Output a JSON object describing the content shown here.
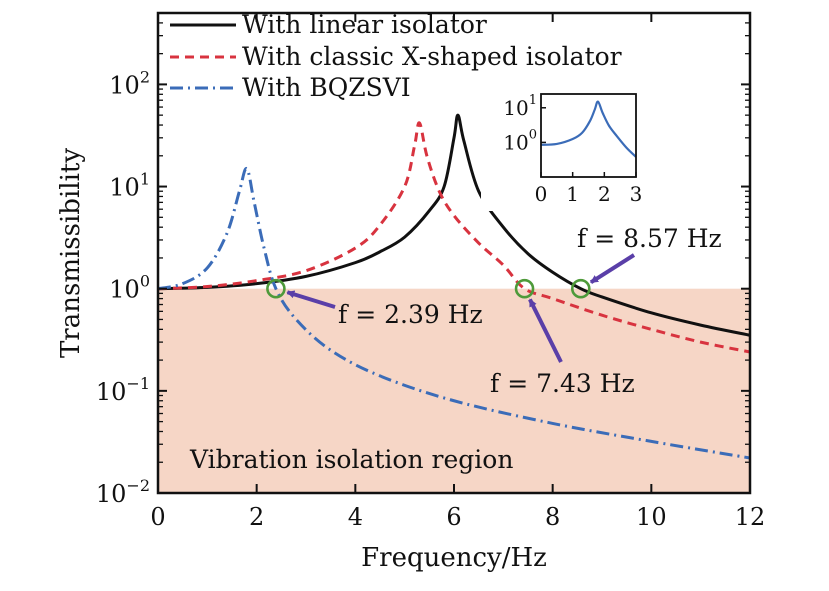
{
  "chart_data": {
    "type": "line",
    "xlabel": "Frequency/Hz",
    "ylabel": "Transmissibility",
    "xlim": [
      0,
      12
    ],
    "ylim": [
      0.01,
      500
    ],
    "yscale": "log",
    "x_ticks": [
      0,
      2,
      4,
      6,
      8,
      10,
      12
    ],
    "y_ticks": [
      {
        "value": 0.01,
        "base": "10",
        "exp": "−2"
      },
      {
        "value": 0.1,
        "base": "10",
        "exp": "−1"
      },
      {
        "value": 1,
        "base": "10",
        "exp": "0"
      },
      {
        "value": 10,
        "base": "10",
        "exp": "1"
      },
      {
        "value": 100,
        "base": "10",
        "exp": "2"
      }
    ],
    "legend_position": "top-left",
    "series": [
      {
        "name": "With linear isolator",
        "color": "#111111",
        "dash": "solid",
        "points": [
          [
            0,
            1.0
          ],
          [
            1,
            1.03
          ],
          [
            2,
            1.12
          ],
          [
            3,
            1.32
          ],
          [
            4,
            1.8
          ],
          [
            4.5,
            2.3
          ],
          [
            5,
            3.2
          ],
          [
            5.5,
            5.8
          ],
          [
            5.8,
            10
          ],
          [
            6,
            30
          ],
          [
            6.08,
            50
          ],
          [
            6.2,
            28
          ],
          [
            6.5,
            9
          ],
          [
            7,
            4.0
          ],
          [
            7.5,
            2.2
          ],
          [
            8,
            1.45
          ],
          [
            8.57,
            1.0
          ],
          [
            9,
            0.83
          ],
          [
            10,
            0.58
          ],
          [
            11,
            0.44
          ],
          [
            12,
            0.35
          ]
        ]
      },
      {
        "name": "With classic X-shaped isolator",
        "color": "#d8333f",
        "dash": "dashed",
        "points": [
          [
            0,
            1.0
          ],
          [
            1,
            1.05
          ],
          [
            2,
            1.2
          ],
          [
            3,
            1.5
          ],
          [
            4,
            2.5
          ],
          [
            4.5,
            4.2
          ],
          [
            5,
            10
          ],
          [
            5.2,
            25
          ],
          [
            5.3,
            42
          ],
          [
            5.45,
            20
          ],
          [
            5.7,
            9
          ],
          [
            6,
            5.2
          ],
          [
            6.5,
            2.8
          ],
          [
            7,
            1.7
          ],
          [
            7.43,
            1.0
          ],
          [
            8,
            0.8
          ],
          [
            9,
            0.55
          ],
          [
            10,
            0.4
          ],
          [
            11,
            0.3
          ],
          [
            12,
            0.24
          ]
        ]
      },
      {
        "name": "With BQZSVI",
        "color": "#3b6cb8",
        "dash": "dashdot",
        "points": [
          [
            0,
            1.0
          ],
          [
            0.5,
            1.12
          ],
          [
            1,
            1.6
          ],
          [
            1.4,
            3.5
          ],
          [
            1.65,
            9
          ],
          [
            1.8,
            15
          ],
          [
            1.95,
            7
          ],
          [
            2.15,
            2.5
          ],
          [
            2.39,
            1.0
          ],
          [
            2.8,
            0.5
          ],
          [
            3.5,
            0.25
          ],
          [
            4.5,
            0.14
          ],
          [
            6,
            0.08
          ],
          [
            8,
            0.048
          ],
          [
            10,
            0.032
          ],
          [
            12,
            0.022
          ]
        ]
      }
    ],
    "annotations": [
      {
        "text": "f = 2.39 Hz",
        "x": 2.39,
        "y": 1.0
      },
      {
        "text": "f = 7.43 Hz",
        "x": 7.43,
        "y": 1.0
      },
      {
        "text": "f = 8.57 Hz",
        "x": 8.57,
        "y": 1.0
      }
    ],
    "shaded_region": {
      "label": "Vibration isolation region",
      "color": "#f6d6c6",
      "y_max": 1
    },
    "inset": {
      "xlim": [
        0,
        3
      ],
      "ylim": [
        0.1,
        25
      ],
      "yscale": "log",
      "x_ticks": [
        0,
        1,
        2,
        3
      ],
      "y_ticks": [
        {
          "value": 1,
          "base": "10",
          "exp": "0"
        },
        {
          "value": 10,
          "base": "10",
          "exp": "1"
        }
      ],
      "color": "#3b6cb8",
      "points": [
        [
          0,
          0.85
        ],
        [
          0.5,
          0.9
        ],
        [
          1,
          1.25
        ],
        [
          1.3,
          1.9
        ],
        [
          1.55,
          4.2
        ],
        [
          1.7,
          9
        ],
        [
          1.8,
          15
        ],
        [
          1.95,
          7
        ],
        [
          2.15,
          3
        ],
        [
          2.4,
          1.5
        ],
        [
          2.7,
          0.7
        ],
        [
          3,
          0.38
        ]
      ]
    }
  }
}
